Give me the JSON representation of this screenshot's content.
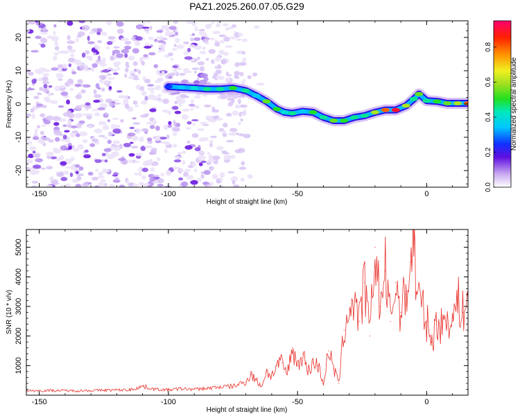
{
  "title": "PAZ1.2025.260.07.05.G29",
  "chart_data": [
    {
      "type": "heatmap",
      "xlabel": "Height of straight line (km)",
      "ylabel": "Frequency (Hz)",
      "xlim": [
        -155,
        16
      ],
      "ylim": [
        -25,
        25
      ],
      "xticks": [
        -150,
        -100,
        -50,
        0
      ],
      "yticks": [
        -20,
        -10,
        0,
        10,
        20
      ],
      "colorbar": {
        "label": "Normalized spectral amplitude",
        "range": [
          0,
          0.95
        ],
        "ticks": [
          "0.0",
          "0.2",
          "0.4",
          "0.6",
          "0.8"
        ]
      },
      "ridge": {
        "x": [
          -100,
          -95,
          -90,
          -85,
          -80,
          -75,
          -70,
          -66,
          -62,
          -58,
          -55,
          -52,
          -48,
          -44,
          -40,
          -36,
          -32,
          -28,
          -24,
          -20,
          -16,
          -12,
          -8,
          -5,
          -3,
          0,
          4,
          8,
          12,
          16
        ],
        "y": [
          5.2,
          5.0,
          4.8,
          4.5,
          4.5,
          4.8,
          4.0,
          2.5,
          0.8,
          -1.5,
          -2.5,
          -2.8,
          -2.2,
          -2.5,
          -4.0,
          -5.0,
          -5.0,
          -4.0,
          -3.5,
          -2.5,
          -1.8,
          -1.8,
          -0.5,
          1.5,
          3.0,
          1.0,
          0.8,
          0.2,
          0.2,
          0.2
        ],
        "amplitude": [
          0.25,
          0.35,
          0.4,
          0.45,
          0.45,
          0.5,
          0.45,
          0.35,
          0.55,
          0.5,
          0.4,
          0.45,
          0.35,
          0.5,
          0.45,
          0.55,
          0.5,
          0.45,
          0.45,
          0.6,
          0.8,
          0.9,
          0.6,
          0.45,
          0.55,
          0.45,
          0.5,
          0.55,
          0.6,
          0.8
        ]
      }
    },
    {
      "type": "line",
      "xlabel": "Height of straight line (km)",
      "ylabel": "SNR (10 * v/v)",
      "xlim": [
        -155,
        16
      ],
      "ylim": [
        0,
        5600
      ],
      "xticks": [
        -150,
        -100,
        -50,
        0
      ],
      "yticks": [
        1000,
        2000,
        3000,
        4000,
        5000
      ],
      "series": [
        {
          "color": "#e8302a",
          "x": [
            -155,
            -145,
            -135,
            -125,
            -115,
            -110,
            -105,
            -100,
            -95,
            -90,
            -85,
            -80,
            -75,
            -70,
            -68,
            -66,
            -64,
            -62,
            -60,
            -58,
            -56,
            -54,
            -52,
            -50,
            -48,
            -46,
            -44,
            -42,
            -40,
            -38,
            -36,
            -34,
            -32,
            -30,
            -28,
            -26,
            -24,
            -22,
            -20,
            -18,
            -16,
            -14,
            -12,
            -10,
            -8,
            -6,
            -5,
            -4,
            -2,
            0,
            2,
            4,
            6,
            8,
            10,
            12,
            14,
            16
          ],
          "y": [
            150,
            160,
            150,
            170,
            180,
            300,
            200,
            180,
            220,
            200,
            230,
            280,
            300,
            450,
            700,
            500,
            300,
            800,
            650,
            1000,
            1100,
            700,
            1600,
            1000,
            1400,
            800,
            1100,
            1000,
            400,
            1500,
            900,
            400,
            2200,
            2900,
            3200,
            2500,
            3800,
            2000,
            5000,
            3000,
            4200,
            2500,
            3800,
            2800,
            3500,
            4500,
            5600,
            3500,
            3000,
            2500,
            1800,
            2500,
            2300,
            2700,
            2500,
            3200,
            2800,
            3300
          ]
        }
      ]
    }
  ]
}
